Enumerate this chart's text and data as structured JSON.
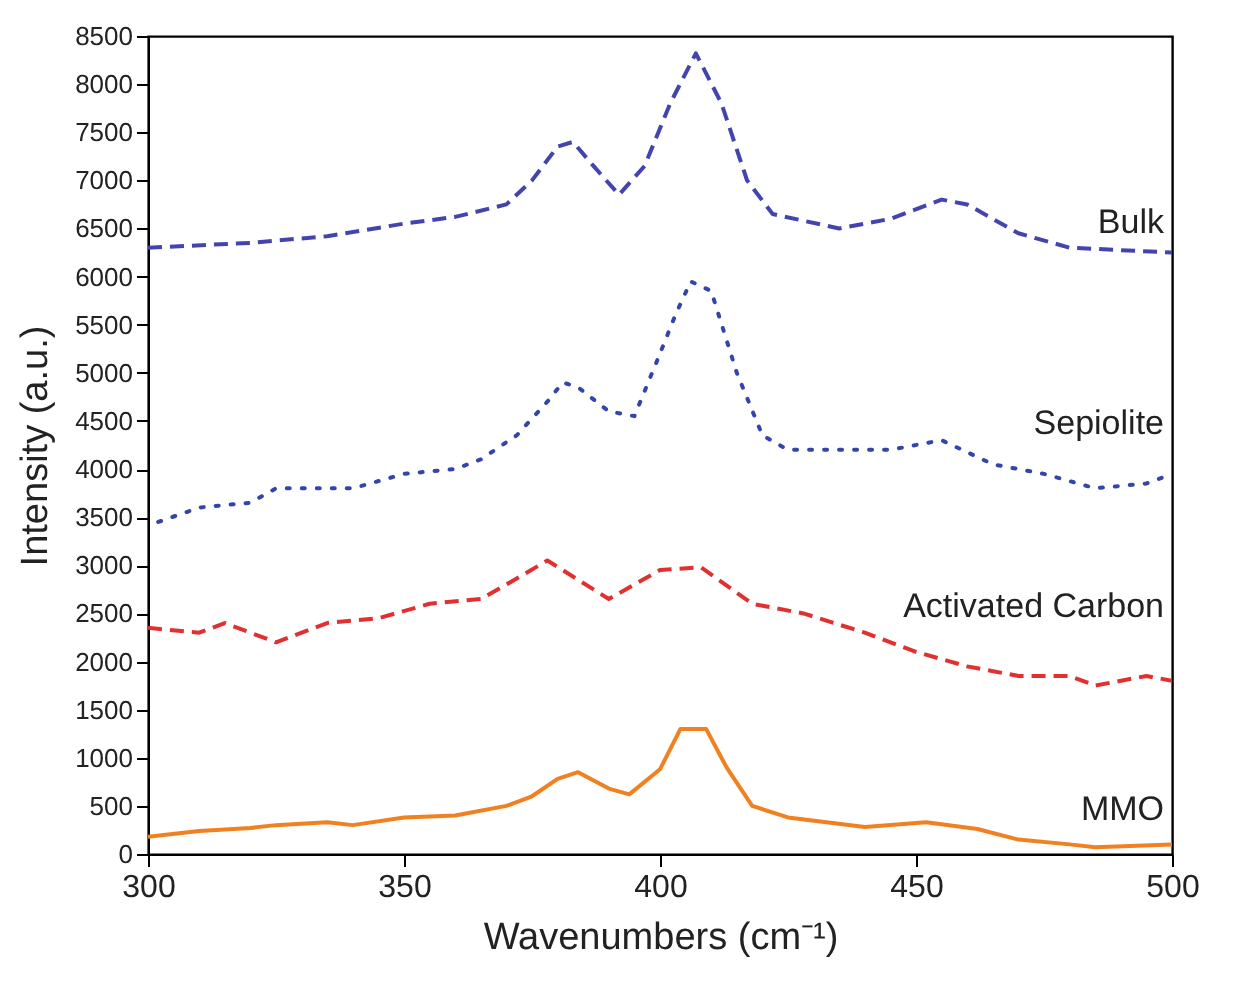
{
  "chart_data": {
    "type": "line",
    "xlabel": "Wavenumbers (cm⁻¹)",
    "ylabel": "Intensity (a.u.)",
    "xlim": [
      300,
      500
    ],
    "xticks": [
      300,
      350,
      400,
      450,
      500
    ],
    "ylim": [
      0,
      8500
    ],
    "yticks": [
      0,
      500,
      1000,
      1500,
      2000,
      2500,
      3000,
      3500,
      4000,
      4500,
      5000,
      5500,
      6000,
      6500,
      7000,
      7500,
      8000,
      8500
    ],
    "grid": false,
    "marker": "none",
    "series": [
      {
        "name": "Bulk",
        "color": "#4444b0",
        "line_style": "dashed",
        "x": [
          300,
          320,
          335,
          350,
          360,
          370,
          375,
          380,
          383,
          387,
          392,
          397,
          402,
          407,
          412,
          417,
          422,
          435,
          445,
          455,
          460,
          470,
          480,
          500
        ],
        "values": [
          6300,
          6350,
          6420,
          6550,
          6620,
          6750,
          7000,
          7350,
          7400,
          7150,
          6850,
          7150,
          7800,
          8320,
          7800,
          7000,
          6650,
          6500,
          6600,
          6800,
          6750,
          6450,
          6300,
          6250
        ]
      },
      {
        "name": "Sepiolite",
        "color": "#3344aa",
        "line_style": "dotted",
        "x": [
          302,
          310,
          320,
          325,
          340,
          350,
          360,
          365,
          372,
          378,
          381,
          384,
          390,
          395,
          400,
          403,
          406,
          410,
          415,
          420,
          425,
          435,
          445,
          455,
          465,
          475,
          485,
          495,
          500
        ],
        "values": [
          3450,
          3600,
          3650,
          3800,
          3800,
          3950,
          4000,
          4100,
          4350,
          4700,
          4900,
          4850,
          4600,
          4550,
          5200,
          5600,
          5950,
          5850,
          5000,
          4350,
          4200,
          4200,
          4200,
          4300,
          4050,
          3950,
          3800,
          3850,
          3950
        ]
      },
      {
        "name": "Activated Carbon",
        "color": "#e03030",
        "line_style": "dashed",
        "x": [
          300,
          310,
          315,
          325,
          335,
          345,
          355,
          365,
          370,
          378,
          390,
          400,
          408,
          418,
          428,
          440,
          450,
          460,
          470,
          480,
          485,
          495,
          500
        ],
        "values": [
          2350,
          2300,
          2400,
          2200,
          2400,
          2450,
          2600,
          2650,
          2800,
          3050,
          2650,
          2950,
          2980,
          2600,
          2500,
          2300,
          2100,
          1950,
          1850,
          1850,
          1750,
          1850,
          1800
        ]
      },
      {
        "name": "MMO",
        "color": "#f08020",
        "line_style": "solid",
        "x": [
          300,
          310,
          320,
          325,
          335,
          340,
          350,
          360,
          370,
          375,
          380,
          384,
          390,
          394,
          400,
          404,
          409,
          413,
          418,
          425,
          440,
          452,
          462,
          470,
          480,
          485,
          500
        ],
        "values": [
          180,
          240,
          270,
          300,
          330,
          300,
          380,
          400,
          500,
          600,
          780,
          850,
          680,
          620,
          880,
          1300,
          1300,
          900,
          500,
          380,
          280,
          330,
          260,
          150,
          100,
          70,
          100
        ]
      }
    ]
  }
}
